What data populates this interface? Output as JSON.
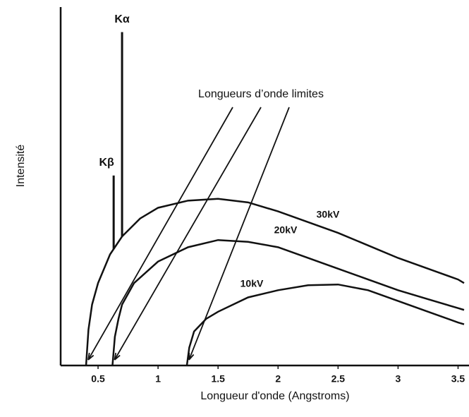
{
  "chart_data": {
    "type": "line",
    "annotation": "Longueurs d’onde limites",
    "x_label": "Longueur d'onde (Angstroms)",
    "y_label": "Intensité",
    "xlim": [
      0.2,
      3.55
    ],
    "ylim": [
      0,
      100
    ],
    "xticks": [
      0.5,
      1.0,
      1.5,
      2.0,
      2.5,
      3.0,
      3.5
    ],
    "grid": false,
    "series": [
      {
        "name": "30kV",
        "color": "#111111",
        "x": [
          0.4,
          0.42,
          0.45,
          0.5,
          0.6,
          0.7,
          0.85,
          1.0,
          1.25,
          1.5,
          1.75,
          2.0,
          2.25,
          2.5,
          2.75,
          3.0,
          3.25,
          3.5,
          3.55
        ],
        "values": [
          0,
          10,
          17,
          23,
          31,
          36,
          41,
          44,
          46,
          46.5,
          45.5,
          43,
          40,
          37,
          33.5,
          30,
          27,
          24,
          23
        ]
      },
      {
        "name": "20kV",
        "color": "#111111",
        "x": [
          0.62,
          0.64,
          0.67,
          0.7,
          0.8,
          1.0,
          1.25,
          1.5,
          1.75,
          2.0,
          2.25,
          2.5,
          2.75,
          3.0,
          3.25,
          3.5,
          3.55
        ],
        "values": [
          0,
          8,
          13,
          17,
          23,
          29,
          33,
          35,
          34.5,
          33,
          30,
          27,
          24,
          21,
          18.5,
          16,
          15.5
        ]
      },
      {
        "name": "10kV",
        "color": "#111111",
        "x": [
          1.24,
          1.26,
          1.3,
          1.4,
          1.5,
          1.75,
          2.0,
          2.25,
          2.5,
          2.75,
          3.0,
          3.25,
          3.5,
          3.55
        ],
        "values": [
          0,
          5,
          9.5,
          13,
          15,
          19,
          21,
          22.4,
          22.6,
          21,
          18,
          15,
          12,
          11.5
        ]
      }
    ],
    "peaks": [
      {
        "label": "Kα",
        "x": 0.7,
        "value": 93
      },
      {
        "label": "Kβ",
        "x": 0.63,
        "value": 53
      }
    ]
  }
}
